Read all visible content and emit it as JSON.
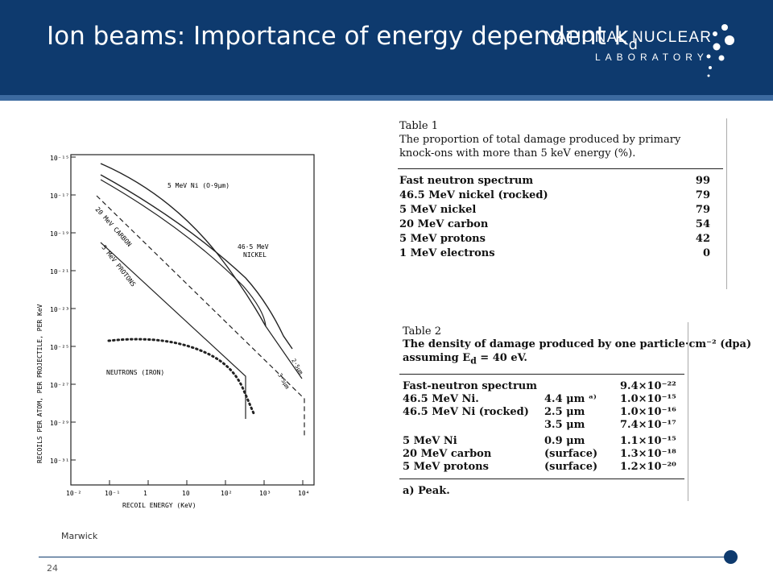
{
  "slide": {
    "title_main": "Ion beams: Importance of energy dependent k",
    "title_sub": "d",
    "logo_line1": "NATIONAL NUCLEAR",
    "logo_line2": "LABORATORY",
    "source_credit": "Marwick",
    "page_number": "24",
    "colors": {
      "header": "#0e3a6e",
      "strip": "#3c6aa0"
    }
  },
  "figure": {
    "y_label": "RECOILS PER ATOM, PER PROJECTILE, PER KeV",
    "x_label": "RECOIL ENERGY (KeV)",
    "x_ticks": [
      "10⁻²",
      "10⁻¹",
      "1",
      "10",
      "10²",
      "10³",
      "10⁴"
    ],
    "y_ticks": [
      "10⁻¹⁵",
      "10⁻¹⁷",
      "10⁻¹⁹",
      "10⁻²¹",
      "10⁻²³",
      "10⁻²⁵",
      "10⁻²⁷",
      "10⁻²⁹",
      "10⁻³¹"
    ],
    "curve_labels": {
      "ni5": "5 MeV Ni (O·9μm)",
      "ni465_a": "46·5 MeV",
      "ni465_b": "NICKEL",
      "carbon": "20 MeV CARBON",
      "protons": "5 MeV PROTONS",
      "neutrons": "NEUTRONS (IRON)",
      "d25": "2·5μm",
      "d35": "3·5μm"
    }
  },
  "table1": {
    "caption": "Table 1",
    "title_line1": "The proportion of total damage produced by primary",
    "title_line2": "knock-ons with more than 5 keV energy (%).",
    "rows": [
      {
        "label": "Fast neutron spectrum",
        "value": "99"
      },
      {
        "label": "46.5 MeV nickel (rocked)",
        "value": "79"
      },
      {
        "label": "5 MeV nickel",
        "value": "79"
      },
      {
        "label": "20 MeV carbon",
        "value": "54"
      },
      {
        "label": "5 MeV protons",
        "value": "42"
      },
      {
        "label": "1 MeV electrons",
        "value": "0"
      }
    ]
  },
  "table2": {
    "caption": "Table 2",
    "title_line1": "The density of damage produced by one particle·cm⁻² (dpa)",
    "title_line2": "assuming E",
    "title_line2_sub": "d",
    "title_line2_end": " = 40 eV.",
    "rows": [
      {
        "label": "Fast-neutron spectrum",
        "depth": "",
        "value": "9.4×10⁻²²"
      },
      {
        "label": "46.5 MeV Ni.",
        "depth": "4.4 μm ᵃ⁾",
        "value": "1.0×10⁻¹⁵"
      },
      {
        "label": "46.5 MeV Ni (rocked)",
        "depth": "2.5 μm",
        "value": "1.0×10⁻¹⁶"
      },
      {
        "label": "",
        "depth": "3.5 μm",
        "value": "7.4×10⁻¹⁷"
      },
      {
        "label": "5 MeV Ni",
        "depth": "0.9 μm",
        "value": "1.1×10⁻¹⁵"
      },
      {
        "label": "20 MeV carbon",
        "depth": "(surface)",
        "value": "1.3×10⁻¹⁸"
      },
      {
        "label": "5 MeV protons",
        "depth": "(surface)",
        "value": "1.2×10⁻²⁰"
      }
    ],
    "footnote": "a) Peak."
  }
}
